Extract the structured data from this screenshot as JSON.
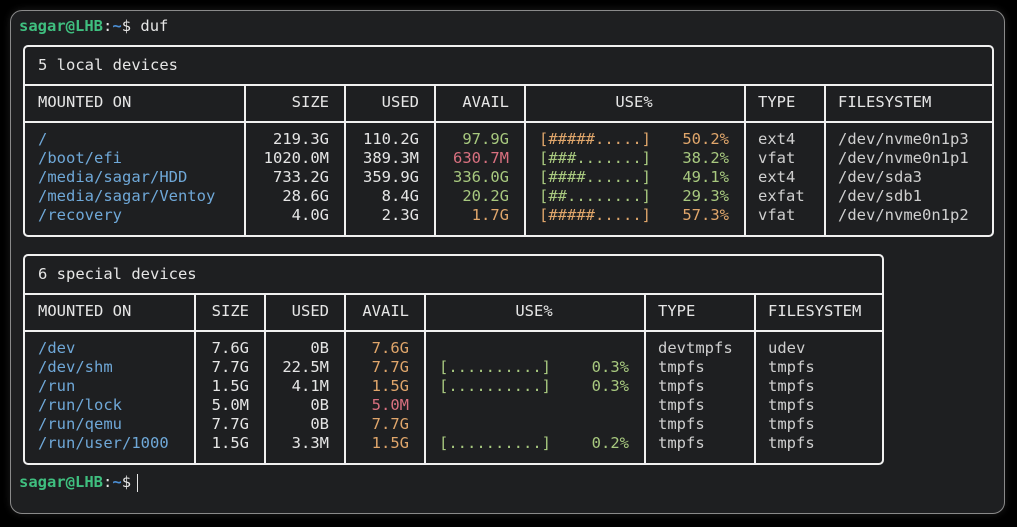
{
  "terminal": {
    "prompt": {
      "user_host": "sagar@LHB",
      "colon": ":",
      "path": "~",
      "symbol": "$"
    },
    "command": "duf"
  },
  "colors": {
    "green": "#a8c97f",
    "orange": "#e0a66b",
    "red": "#d9707f",
    "blue": "#6fa8d8",
    "prompt_green": "#3fbf7f"
  },
  "local": {
    "title": "5 local devices",
    "headers": [
      "MOUNTED ON",
      "SIZE",
      "USED",
      "AVAIL",
      "USE%",
      "TYPE",
      "FILESYSTEM"
    ],
    "rows": [
      {
        "mounted_on": "/",
        "size": "219.3G",
        "used": "110.2G",
        "avail": "97.9G",
        "avail_color": "green",
        "bar": "[#####.....]",
        "pct": "50.2%",
        "use_color": "orange",
        "type": "ext4",
        "filesystem": "/dev/nvme0n1p3"
      },
      {
        "mounted_on": "/boot/efi",
        "size": "1020.0M",
        "used": "389.3M",
        "avail": "630.7M",
        "avail_color": "red",
        "bar": "[###.......]",
        "pct": "38.2%",
        "use_color": "green",
        "type": "vfat",
        "filesystem": "/dev/nvme0n1p1"
      },
      {
        "mounted_on": "/media/sagar/HDD",
        "size": "733.2G",
        "used": "359.9G",
        "avail": "336.0G",
        "avail_color": "green",
        "bar": "[####......]",
        "pct": "49.1%",
        "use_color": "green",
        "type": "ext4",
        "filesystem": "/dev/sda3"
      },
      {
        "mounted_on": "/media/sagar/Ventoy",
        "size": "28.6G",
        "used": "8.4G",
        "avail": "20.2G",
        "avail_color": "green",
        "bar": "[##........]",
        "pct": "29.3%",
        "use_color": "green",
        "type": "exfat",
        "filesystem": "/dev/sdb1"
      },
      {
        "mounted_on": "/recovery",
        "size": "4.0G",
        "used": "2.3G",
        "avail": "1.7G",
        "avail_color": "orange",
        "bar": "[#####.....]",
        "pct": "57.3%",
        "use_color": "orange",
        "type": "vfat",
        "filesystem": "/dev/nvme0n1p2"
      }
    ]
  },
  "special": {
    "title": "6 special devices",
    "headers": [
      "MOUNTED ON",
      "SIZE",
      "USED",
      "AVAIL",
      "USE%",
      "TYPE",
      "FILESYSTEM"
    ],
    "rows": [
      {
        "mounted_on": "/dev",
        "size": "7.6G",
        "used": "0B",
        "avail": "7.6G",
        "avail_color": "orange",
        "bar": "",
        "pct": "",
        "use_color": "green",
        "type": "devtmpfs",
        "filesystem": "udev"
      },
      {
        "mounted_on": "/dev/shm",
        "size": "7.7G",
        "used": "22.5M",
        "avail": "7.7G",
        "avail_color": "orange",
        "bar": "[..........]",
        "pct": "0.3%",
        "use_color": "green",
        "type": "tmpfs",
        "filesystem": "tmpfs"
      },
      {
        "mounted_on": "/run",
        "size": "1.5G",
        "used": "4.1M",
        "avail": "1.5G",
        "avail_color": "orange",
        "bar": "[..........]",
        "pct": "0.3%",
        "use_color": "green",
        "type": "tmpfs",
        "filesystem": "tmpfs"
      },
      {
        "mounted_on": "/run/lock",
        "size": "5.0M",
        "used": "0B",
        "avail": "5.0M",
        "avail_color": "red",
        "bar": "",
        "pct": "",
        "use_color": "green",
        "type": "tmpfs",
        "filesystem": "tmpfs"
      },
      {
        "mounted_on": "/run/qemu",
        "size": "7.7G",
        "used": "0B",
        "avail": "7.7G",
        "avail_color": "orange",
        "bar": "",
        "pct": "",
        "use_color": "green",
        "type": "tmpfs",
        "filesystem": "tmpfs"
      },
      {
        "mounted_on": "/run/user/1000",
        "size": "1.5G",
        "used": "3.3M",
        "avail": "1.5G",
        "avail_color": "orange",
        "bar": "[..........]",
        "pct": "0.2%",
        "use_color": "green",
        "type": "tmpfs",
        "filesystem": "tmpfs"
      }
    ]
  }
}
